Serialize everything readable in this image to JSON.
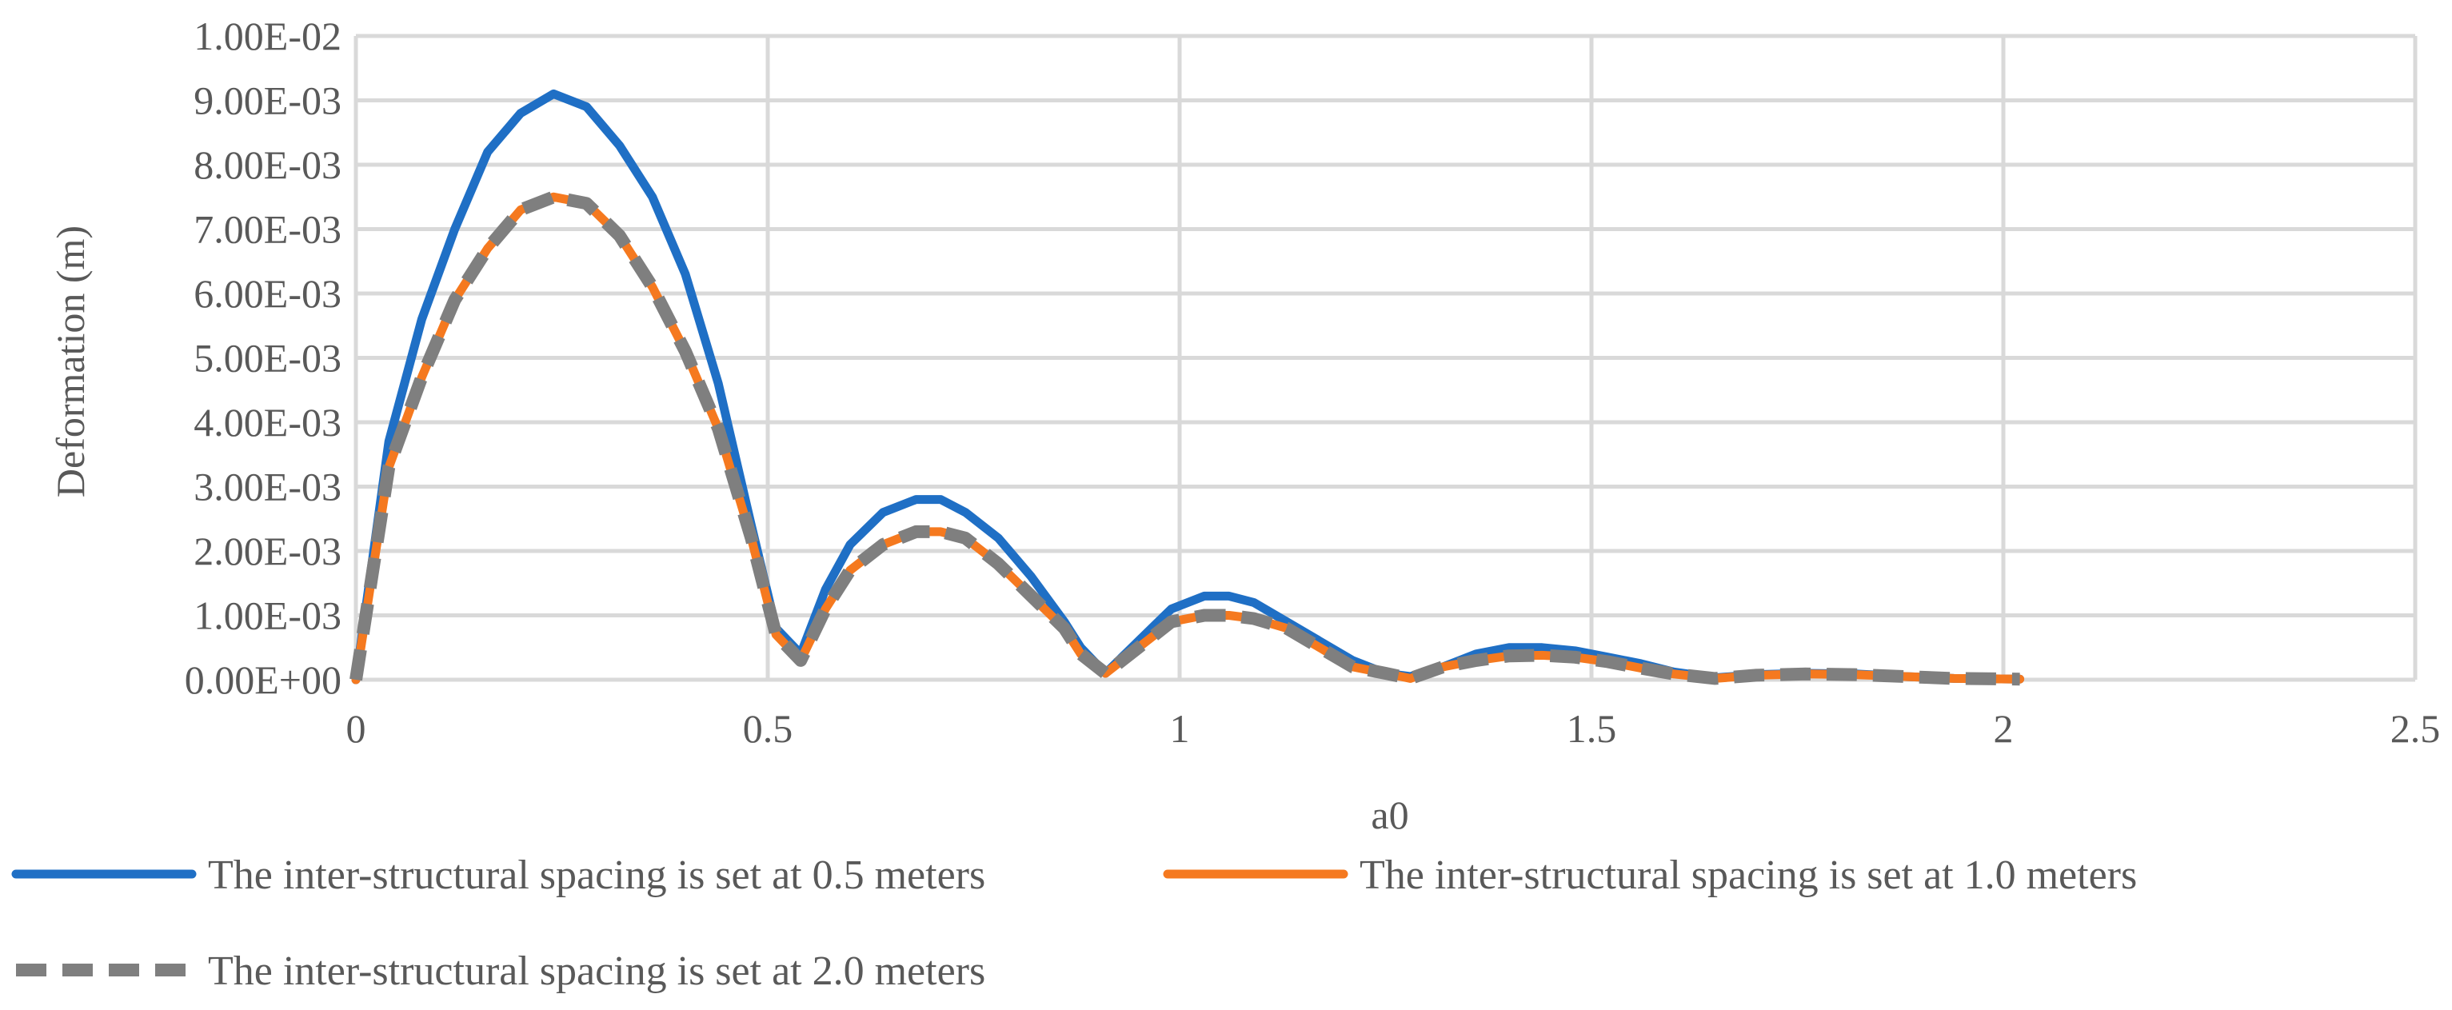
{
  "chart_data": {
    "type": "line",
    "title": "",
    "xlabel": "a0",
    "ylabel": "Deformation (m)",
    "xlim": [
      0,
      2.5
    ],
    "ylim": [
      0,
      0.01
    ],
    "xticks": [
      0,
      0.5,
      1,
      1.5,
      2,
      2.5
    ],
    "xtick_labels": [
      "0",
      "0.5",
      "1",
      "1.5",
      "2",
      "2.5"
    ],
    "yticks": [
      0,
      0.001,
      0.002,
      0.003,
      0.004,
      0.005,
      0.006,
      0.007,
      0.008,
      0.009,
      0.01
    ],
    "ytick_labels": [
      "0.00E+00",
      "1.00E-03",
      "2.00E-03",
      "3.00E-03",
      "4.00E-03",
      "5.00E-03",
      "6.00E-03",
      "7.00E-03",
      "8.00E-03",
      "9.00E-03",
      "1.00E-02"
    ],
    "grid": true,
    "legend_position": "bottom",
    "x": [
      0,
      0.04,
      0.08,
      0.12,
      0.16,
      0.2,
      0.24,
      0.28,
      0.32,
      0.36,
      0.4,
      0.44,
      0.48,
      0.51,
      0.54,
      0.57,
      0.6,
      0.64,
      0.68,
      0.71,
      0.74,
      0.78,
      0.82,
      0.86,
      0.88,
      0.91,
      0.95,
      0.99,
      1.03,
      1.06,
      1.09,
      1.13,
      1.17,
      1.21,
      1.25,
      1.28,
      1.32,
      1.36,
      1.4,
      1.44,
      1.48,
      1.52,
      1.56,
      1.6,
      1.65,
      1.7,
      1.76,
      1.82,
      1.88,
      1.94,
      2.02
    ],
    "series": [
      {
        "name": "The inter-structural spacing is set at 0.5 meters",
        "color": "#1F6FC5",
        "dash": "solid",
        "values": [
          0,
          0.0037,
          0.0056,
          0.007,
          0.0082,
          0.0088,
          0.0091,
          0.0089,
          0.0083,
          0.0075,
          0.0063,
          0.0046,
          0.0024,
          0.0008,
          0.0004,
          0.0014,
          0.0021,
          0.0026,
          0.0028,
          0.0028,
          0.0026,
          0.0022,
          0.0016,
          0.0009,
          0.0005,
          0.0001,
          0.0006,
          0.0011,
          0.0013,
          0.0013,
          0.0012,
          0.0009,
          0.0006,
          0.0003,
          0.0001,
          5e-05,
          0.0002,
          0.0004,
          0.0005,
          0.0005,
          0.00045,
          0.00035,
          0.00025,
          0.00012,
          3e-05,
          8e-05,
          0.0001,
          9e-05,
          5e-05,
          2e-05,
          1e-05
        ]
      },
      {
        "name": "The inter-structural spacing is set at 1.0 meters",
        "color": "#F5791F",
        "dash": "solid",
        "values": [
          0,
          0.0033,
          0.0047,
          0.0059,
          0.0067,
          0.0073,
          0.0075,
          0.0074,
          0.0069,
          0.0061,
          0.0051,
          0.0039,
          0.0022,
          0.0007,
          0.0003,
          0.0011,
          0.0017,
          0.0021,
          0.0023,
          0.0023,
          0.0022,
          0.0018,
          0.0013,
          0.0008,
          0.0004,
          0.0001,
          0.0005,
          0.0009,
          0.001,
          0.001,
          0.00095,
          0.0008,
          0.0005,
          0.0002,
          0.0001,
          2e-05,
          0.0002,
          0.0003,
          0.00037,
          0.00038,
          0.00035,
          0.00028,
          0.00018,
          9e-05,
          2e-05,
          7e-05,
          9e-05,
          8e-05,
          5e-05,
          2e-05,
          1e-05
        ]
      },
      {
        "name": "The inter-structural spacing is set at 2.0 meters",
        "color": "#7F7F7F",
        "dash": "dashed",
        "values": [
          0,
          0.0033,
          0.0047,
          0.0059,
          0.0067,
          0.0073,
          0.0075,
          0.0074,
          0.0069,
          0.0061,
          0.0051,
          0.0039,
          0.0022,
          0.0007,
          0.0003,
          0.0011,
          0.0017,
          0.0021,
          0.0023,
          0.0023,
          0.0022,
          0.0018,
          0.0013,
          0.0008,
          0.0004,
          0.0001,
          0.0005,
          0.0009,
          0.001,
          0.001,
          0.00095,
          0.0008,
          0.0005,
          0.0002,
          0.0001,
          2e-05,
          0.0002,
          0.0003,
          0.00037,
          0.00038,
          0.00035,
          0.00028,
          0.00018,
          9e-05,
          2e-05,
          7e-05,
          9e-05,
          8e-05,
          5e-05,
          2e-05,
          1e-05
        ]
      }
    ]
  }
}
